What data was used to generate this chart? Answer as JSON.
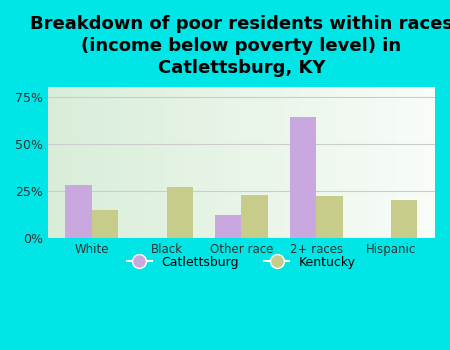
{
  "title": "Breakdown of poor residents within races\n(income below poverty level) in\nCatlettsburg, KY",
  "categories": [
    "White",
    "Black",
    "Other race",
    "2+ races",
    "Hispanic"
  ],
  "catlettsburg_values": [
    28,
    0,
    12,
    64,
    0
  ],
  "kentucky_values": [
    15,
    27,
    23,
    22,
    20
  ],
  "catlettsburg_color": "#c9a8e0",
  "kentucky_color": "#c8cc8a",
  "background_color": "#00e5e5",
  "ylim": [
    0,
    80
  ],
  "yticks": [
    0,
    25,
    50,
    75
  ],
  "ytick_labels": [
    "0%",
    "25%",
    "50%",
    "75%"
  ],
  "title_fontsize": 13,
  "legend_labels": [
    "Catlettsburg",
    "Kentucky"
  ],
  "bar_width": 0.35,
  "grid_color": "#cccccc"
}
